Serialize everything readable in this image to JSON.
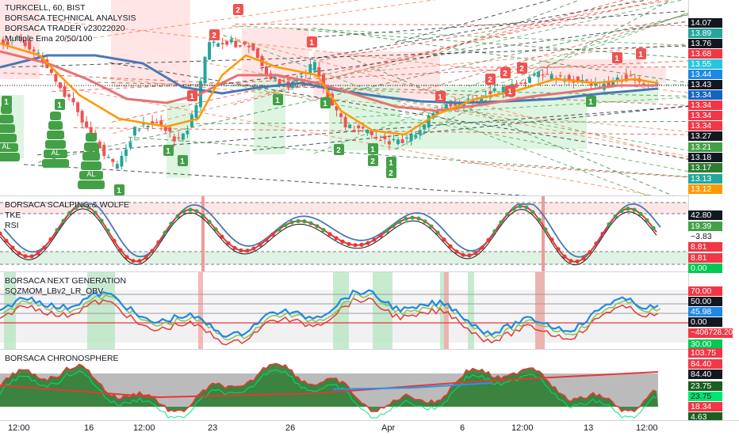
{
  "symbol_title": "TURKCELL, 60, BIST",
  "main_indicators": [
    "BORSACA TECHNICAL ANALYSIS",
    "BORSACA TRADER v23022020",
    "Multiple Ema 20/50/100"
  ],
  "pane2_labels": [
    "BORSACA SCALPING & WOLFE",
    "TKE",
    "RSI"
  ],
  "pane3_labels": [
    "BORSACA NEXT GENERATION",
    "SQZMOM_LBv2_LR_OBV"
  ],
  "pane4_labels": [
    "BORSACA CHRONOSPHERE"
  ],
  "signal_al": "AL",
  "signal_digits": [
    "1",
    "2"
  ],
  "price_scale": [
    {
      "value": "14.07",
      "bg": "#131722",
      "fg": "#ffffff"
    },
    {
      "value": "13.89",
      "bg": "#26a69a",
      "fg": "#ffffff"
    },
    {
      "value": "13.76",
      "bg": "#131722",
      "fg": "#ffffff"
    },
    {
      "value": "13.68",
      "bg": "#f23645",
      "fg": "#ffffff"
    },
    {
      "value": "13.55",
      "bg": "#26c6da",
      "fg": "#ffffff"
    },
    {
      "value": "13.44",
      "bg": "#1e88e5",
      "fg": "#ffffff"
    },
    {
      "value": "13.43",
      "bg": "#131722",
      "fg": "#ffffff"
    },
    {
      "value": "13.34",
      "bg": "#1565c0",
      "fg": "#ffffff"
    },
    {
      "value": "13.34",
      "bg": "#f23645",
      "fg": "#ffffff"
    },
    {
      "value": "13.34",
      "bg": "#f23645",
      "fg": "#ffffff"
    },
    {
      "value": "13.34",
      "bg": "#f23645",
      "fg": "#ffffff"
    },
    {
      "value": "13.27",
      "bg": "#131722",
      "fg": "#ffffff"
    },
    {
      "value": "13.21",
      "bg": "#43a047",
      "fg": "#ffffff"
    },
    {
      "value": "13.18",
      "bg": "#131722",
      "fg": "#ffffff"
    },
    {
      "value": "13.17",
      "bg": "#2e7d32",
      "fg": "#ffffff"
    },
    {
      "value": "13.13",
      "bg": "#26a69a",
      "fg": "#ffffff"
    },
    {
      "value": "13.12",
      "bg": "#ff9800",
      "fg": "#ffffff"
    }
  ],
  "scale_pane2": [
    {
      "value": "42.80",
      "bg": "#131722",
      "fg": "#ffffff"
    },
    {
      "value": "19.39",
      "bg": "#43a047",
      "fg": "#ffffff"
    },
    {
      "value": "−3.83",
      "bg": "#ffffff",
      "fg": "#131722"
    },
    {
      "value": "8.81",
      "bg": "#f23645",
      "fg": "#ffffff"
    },
    {
      "value": "8.81",
      "bg": "#f23645",
      "fg": "#ffffff"
    },
    {
      "value": "0.00",
      "bg": "#00c853",
      "fg": "#ffffff"
    }
  ],
  "scale_pane3": [
    {
      "value": "70.00",
      "bg": "#f23645",
      "fg": "#ffffff"
    },
    {
      "value": "50.00",
      "bg": "#131722",
      "fg": "#ffffff"
    },
    {
      "value": "45.98",
      "bg": "#1e88e5",
      "fg": "#ffffff"
    },
    {
      "value": "0.00",
      "bg": "#131722",
      "fg": "#ffffff"
    },
    {
      "value": "−406728.20",
      "bg": "#f23645",
      "fg": "#ffffff"
    },
    {
      "value": "30.00",
      "bg": "#00c853",
      "fg": "#ffffff"
    }
  ],
  "scale_pane4": [
    {
      "value": "103.75",
      "bg": "#f23645",
      "fg": "#ffffff"
    },
    {
      "value": "84.40",
      "bg": "#f23645",
      "fg": "#ffffff"
    },
    {
      "value": "84.40",
      "bg": "#131722",
      "fg": "#ffffff"
    },
    {
      "value": "23.75",
      "bg": "#1b5e20",
      "fg": "#ffffff"
    },
    {
      "value": "23.75",
      "bg": "#00e676",
      "fg": "#131722"
    },
    {
      "value": "18.34",
      "bg": "#f23645",
      "fg": "#ffffff"
    },
    {
      "value": "4.63",
      "bg": "#1b5e20",
      "fg": "#ffffff"
    }
  ],
  "time_axis": [
    "12:00",
    "16",
    "12:00",
    "23",
    "26",
    "Apr",
    "6",
    "12:00",
    "13",
    "12:00"
  ],
  "colors": {
    "up": "#26a69a",
    "down": "#ef5350",
    "ema20": "#ff9800",
    "ema50": "#e57373",
    "ema100": "#4a78b5",
    "accent": "#2962ff"
  }
}
